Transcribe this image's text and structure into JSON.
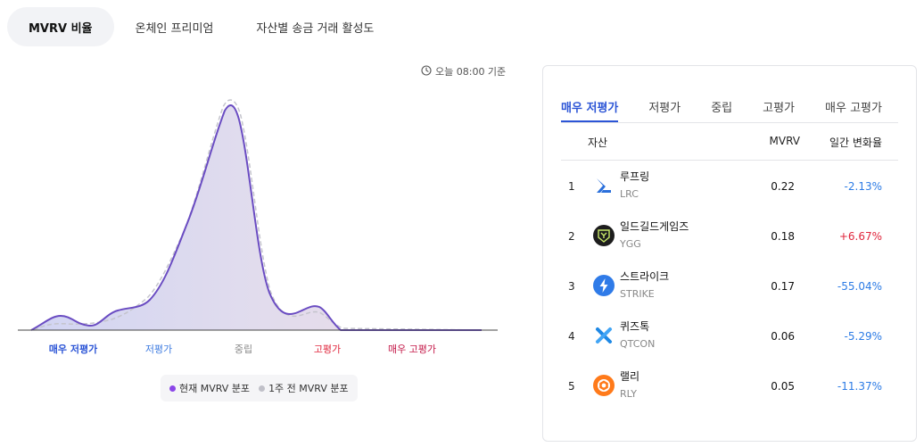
{
  "top_tabs": [
    {
      "label": "MVRV 비율",
      "active": true
    },
    {
      "label": "온체인 프리미엄",
      "active": false
    },
    {
      "label": "자산별 송금 거래 활성도",
      "active": false
    }
  ],
  "timestamp": {
    "text": "오늘 08:00 기준",
    "icon": "clock-icon"
  },
  "zones": [
    {
      "label": "매우 저평가",
      "color": "#2c55d6"
    },
    {
      "label": "저평가",
      "color": "#3d7be0"
    },
    {
      "label": "중립",
      "color": "#888888"
    },
    {
      "label": "고평가",
      "color": "#e0263c"
    },
    {
      "label": "매우 고평가",
      "color": "#c41848"
    }
  ],
  "legend": {
    "current": {
      "label": "현재 MVRV 분포",
      "color": "#8b46e8"
    },
    "previous": {
      "label": "1주 전 MVRV 분포",
      "color": "#c0c0c8"
    }
  },
  "panel": {
    "tabs": [
      {
        "label": "매우 저평가",
        "active": true
      },
      {
        "label": "저평가",
        "active": false
      },
      {
        "label": "중립",
        "active": false
      },
      {
        "label": "고평가",
        "active": false
      },
      {
        "label": "매우 고평가",
        "active": false
      }
    ],
    "headers": {
      "asset": "자산",
      "mvrv": "MVRV",
      "change": "일간 변화율"
    },
    "rows": [
      {
        "rank": "1",
        "name": "루프링",
        "ticker": "LRC",
        "mvrv": "0.22",
        "change": "-2.13%",
        "dir": "neg",
        "icon": "loopring-logo-icon"
      },
      {
        "rank": "2",
        "name": "일드길드게임즈",
        "ticker": "YGG",
        "mvrv": "0.18",
        "change": "+6.67%",
        "dir": "pos",
        "icon": "ygg-logo-icon"
      },
      {
        "rank": "3",
        "name": "스트라이크",
        "ticker": "STRIKE",
        "mvrv": "0.17",
        "change": "-55.04%",
        "dir": "neg",
        "icon": "strike-logo-icon"
      },
      {
        "rank": "4",
        "name": "퀴즈톡",
        "ticker": "QTCON",
        "mvrv": "0.06",
        "change": "-5.29%",
        "dir": "neg",
        "icon": "qtcon-logo-icon"
      },
      {
        "rank": "5",
        "name": "랠리",
        "ticker": "RLY",
        "mvrv": "0.05",
        "change": "-11.37%",
        "dir": "neg",
        "icon": "rally-logo-icon"
      }
    ]
  }
}
